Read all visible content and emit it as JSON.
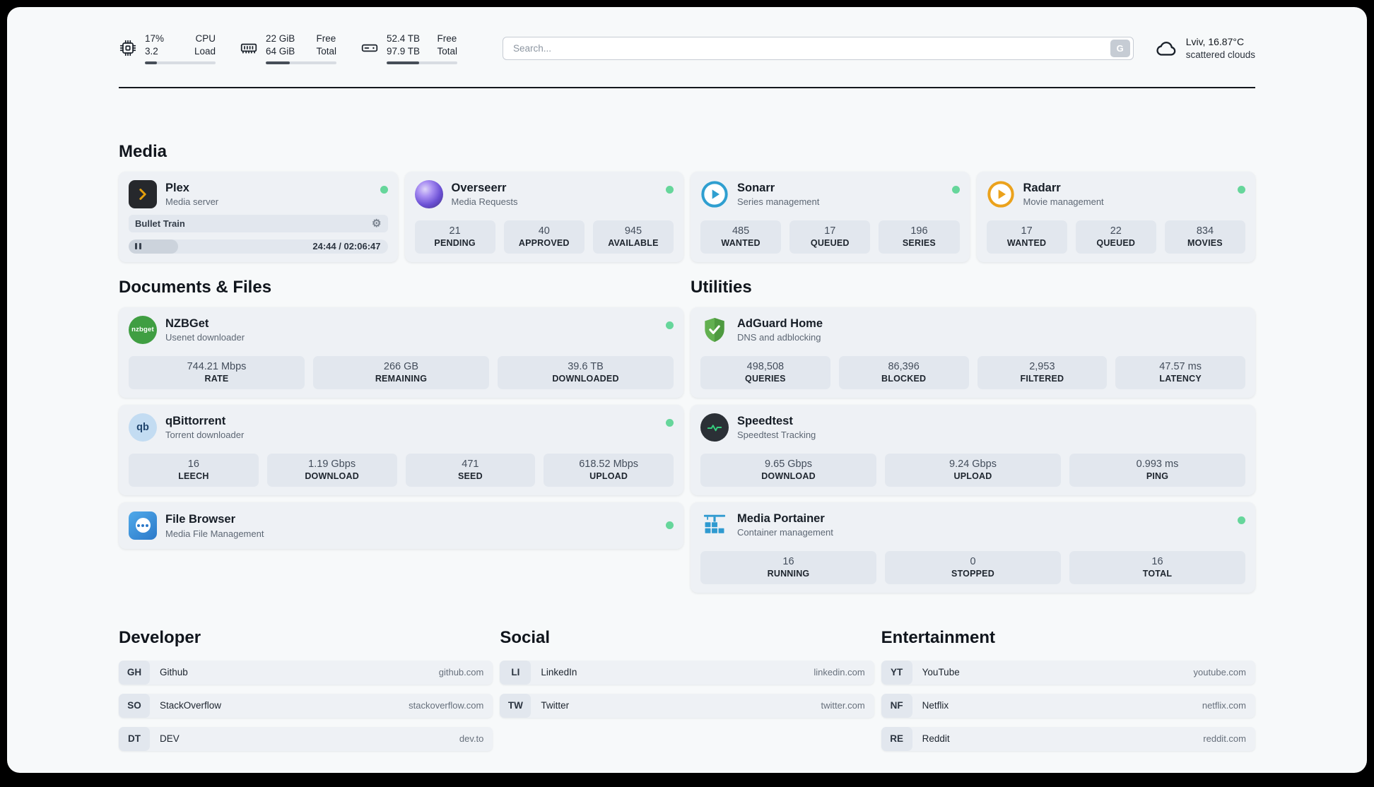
{
  "header": {
    "cpu": {
      "percent": "17%",
      "value": "3.2",
      "label_top": "CPU",
      "label_bottom": "Load",
      "bar_percent": 17
    },
    "memory": {
      "free": "22 GiB",
      "total": "64 GiB",
      "label_top": "Free",
      "label_bottom": "Total",
      "bar_percent": 34
    },
    "disk": {
      "free": "52.4 TB",
      "total": "97.9 TB",
      "label_top": "Free",
      "label_bottom": "Total",
      "bar_percent": 46
    },
    "search": {
      "placeholder": "Search...",
      "provider_label": "G"
    },
    "weather": {
      "location": "Lviv, 16.87°C",
      "condition": "scattered clouds"
    }
  },
  "media": {
    "title": "Media",
    "plex": {
      "name": "Plex",
      "desc": "Media server",
      "now_playing": "Bullet Train",
      "time": "24:44 / 02:06:47",
      "progress_percent": 19
    },
    "overseerr": {
      "name": "Overseerr",
      "desc": "Media Requests",
      "stats": [
        {
          "value": "21",
          "label": "PENDING"
        },
        {
          "value": "40",
          "label": "APPROVED"
        },
        {
          "value": "945",
          "label": "AVAILABLE"
        }
      ]
    },
    "sonarr": {
      "name": "Sonarr",
      "desc": "Series management",
      "stats": [
        {
          "value": "485",
          "label": "WANTED"
        },
        {
          "value": "17",
          "label": "QUEUED"
        },
        {
          "value": "196",
          "label": "SERIES"
        }
      ]
    },
    "radarr": {
      "name": "Radarr",
      "desc": "Movie management",
      "stats": [
        {
          "value": "17",
          "label": "WANTED"
        },
        {
          "value": "22",
          "label": "QUEUED"
        },
        {
          "value": "834",
          "label": "MOVIES"
        }
      ]
    }
  },
  "documents": {
    "title": "Documents & Files",
    "nzbget": {
      "name": "NZBGet",
      "desc": "Usenet downloader",
      "icon_text": "nzbget",
      "stats": [
        {
          "value": "744.21 Mbps",
          "label": "RATE"
        },
        {
          "value": "266 GB",
          "label": "REMAINING"
        },
        {
          "value": "39.6 TB",
          "label": "DOWNLOADED"
        }
      ]
    },
    "qbittorrent": {
      "name": "qBittorrent",
      "desc": "Torrent downloader",
      "icon_text": "qb",
      "stats": [
        {
          "value": "16",
          "label": "LEECH"
        },
        {
          "value": "1.19 Gbps",
          "label": "DOWNLOAD"
        },
        {
          "value": "471",
          "label": "SEED"
        },
        {
          "value": "618.52 Mbps",
          "label": "UPLOAD"
        }
      ]
    },
    "filebrowser": {
      "name": "File Browser",
      "desc": "Media File Management"
    }
  },
  "utilities": {
    "title": "Utilities",
    "adguard": {
      "name": "AdGuard Home",
      "desc": "DNS and adblocking",
      "stats": [
        {
          "value": "498,508",
          "label": "QUERIES"
        },
        {
          "value": "86,396",
          "label": "BLOCKED"
        },
        {
          "value": "2,953",
          "label": "FILTERED"
        },
        {
          "value": "47.57 ms",
          "label": "LATENCY"
        }
      ]
    },
    "speedtest": {
      "name": "Speedtest",
      "desc": "Speedtest Tracking",
      "stats": [
        {
          "value": "9.65 Gbps",
          "label": "DOWNLOAD"
        },
        {
          "value": "9.24 Gbps",
          "label": "UPLOAD"
        },
        {
          "value": "0.993 ms",
          "label": "PING"
        }
      ]
    },
    "portainer": {
      "name": "Media Portainer",
      "desc": "Container management",
      "stats": [
        {
          "value": "16",
          "label": "RUNNING"
        },
        {
          "value": "0",
          "label": "STOPPED"
        },
        {
          "value": "16",
          "label": "TOTAL"
        }
      ]
    }
  },
  "bookmarks": {
    "developer": {
      "title": "Developer",
      "items": [
        {
          "abbr": "GH",
          "name": "Github",
          "url": "github.com"
        },
        {
          "abbr": "SO",
          "name": "StackOverflow",
          "url": "stackoverflow.com"
        },
        {
          "abbr": "DT",
          "name": "DEV",
          "url": "dev.to"
        }
      ]
    },
    "social": {
      "title": "Social",
      "items": [
        {
          "abbr": "LI",
          "name": "LinkedIn",
          "url": "linkedin.com"
        },
        {
          "abbr": "TW",
          "name": "Twitter",
          "url": "twitter.com"
        }
      ]
    },
    "entertainment": {
      "title": "Entertainment",
      "items": [
        {
          "abbr": "YT",
          "name": "YouTube",
          "url": "youtube.com"
        },
        {
          "abbr": "NF",
          "name": "Netflix",
          "url": "netflix.com"
        },
        {
          "abbr": "RE",
          "name": "Reddit",
          "url": "reddit.com"
        }
      ]
    }
  },
  "colors": {
    "status_online": "#66d69b",
    "accent_plex": "#e5a00d",
    "accent_sonarr": "#2f9fd0",
    "accent_radarr": "#eba21c",
    "accent_adguard": "#5aa847",
    "accent_speedtest": "#35d07f",
    "accent_portainer": "#2f9ad0"
  }
}
